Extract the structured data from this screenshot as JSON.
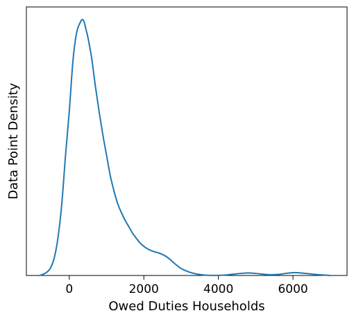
{
  "chart_data": {
    "type": "line",
    "title": "",
    "xlabel": "Owed Duties Households",
    "ylabel": "Data Point Density",
    "xlim": [
      -1150,
      7450
    ],
    "ylim": [
      0,
      1
    ],
    "x_ticks": [
      0,
      2000,
      4000,
      6000
    ],
    "x_tick_labels": [
      "0",
      "2000",
      "4000",
      "6000"
    ],
    "y_ticks_visible": false,
    "grid": false,
    "legend": "none",
    "series": [
      {
        "color": "#1f77b4",
        "x": [
          -800,
          -700,
          -600,
          -500,
          -400,
          -300,
          -200,
          -100,
          0,
          100,
          200,
          300,
          350,
          400,
          450,
          500,
          600,
          700,
          800,
          900,
          1000,
          1100,
          1200,
          1300,
          1400,
          1500,
          1600,
          1700,
          1800,
          1900,
          2000,
          2100,
          2200,
          2300,
          2400,
          2500,
          2600,
          2700,
          2800,
          2900,
          3000,
          3200,
          3400,
          3600,
          3800,
          4000,
          4200,
          4400,
          4600,
          4800,
          5000,
          5200,
          5400,
          5600,
          5800,
          6000,
          6200,
          6400,
          6600,
          6800,
          7000
        ],
        "y": [
          0.0,
          0.005,
          0.013,
          0.03,
          0.07,
          0.15,
          0.28,
          0.47,
          0.64,
          0.84,
          0.95,
          0.99,
          1.0,
          0.99,
          0.96,
          0.93,
          0.85,
          0.74,
          0.64,
          0.55,
          0.47,
          0.39,
          0.33,
          0.28,
          0.245,
          0.215,
          0.19,
          0.165,
          0.145,
          0.127,
          0.114,
          0.104,
          0.097,
          0.092,
          0.088,
          0.082,
          0.074,
          0.063,
          0.05,
          0.038,
          0.027,
          0.014,
          0.006,
          0.002,
          0.0005,
          0.0005,
          0.002,
          0.005,
          0.008,
          0.01,
          0.008,
          0.005,
          0.003,
          0.004,
          0.008,
          0.011,
          0.01,
          0.007,
          0.004,
          0.002,
          0.0
        ]
      }
    ]
  }
}
